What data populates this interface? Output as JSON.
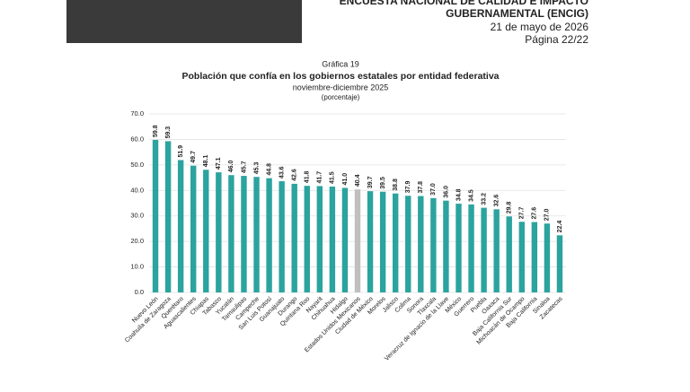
{
  "header": {
    "lines": [
      "ENCUESTA NACIONAL DE CALIDAD E IMPACTO",
      "GUBERNAMENTAL (ENCIG)",
      "21 de mayo de 2026",
      "Página 22/22"
    ]
  },
  "chart_data": {
    "type": "bar",
    "label": "Gráfica 19",
    "title": "Población que confía en los gobiernos estatales por entidad federativa",
    "subtitle": "noviembre-diciembre 2025",
    "unit_note": "(porcentaje)",
    "categories": [
      "Nuevo León",
      "Coahuila de Zaragoza",
      "Querétaro",
      "Aguascalientes",
      "Chiapas",
      "Tabasco",
      "Yucatán",
      "Tamaulipas",
      "Campeche",
      "San Luis Potosí",
      "Guanajuato",
      "Durango",
      "Quintana Roo",
      "Nayarit",
      "Chihuahua",
      "Hidalgo",
      "Estados Unidos Mexicanos",
      "Ciudad de México",
      "Morelos",
      "Jalisco",
      "Colima",
      "Sonora",
      "Tlaxcala",
      "Veracruz de Ignacio de la Llave",
      "México",
      "Guerrero",
      "Puebla",
      "Oaxaca",
      "Baja California Sur",
      "Michoacán de Ocampo",
      "Baja California",
      "Sinaloa",
      "Zacatecas"
    ],
    "values": [
      59.8,
      59.3,
      51.9,
      49.7,
      48.1,
      47.1,
      46.0,
      45.7,
      45.3,
      44.8,
      43.6,
      42.6,
      41.8,
      41.7,
      41.5,
      41.0,
      40.4,
      39.7,
      39.5,
      38.8,
      37.9,
      37.8,
      37.0,
      36.0,
      34.8,
      34.5,
      33.2,
      32.6,
      29.8,
      27.7,
      27.6,
      27.0,
      22.4
    ],
    "value_labels": [
      "59.8",
      "59.3",
      "51.9",
      "49.7",
      "48.1",
      "47.1",
      "46.0",
      "45.7",
      "45.3",
      "44.8",
      "43.6",
      "42.6",
      "41.8",
      "41.7",
      "41.5",
      "41.0",
      "40.4",
      "39.7",
      "39.5",
      "38.8",
      "37.9",
      "37.8",
      "37.0",
      "36.0",
      "34.8",
      "34.5",
      "33.2",
      "32.6",
      "29.8",
      "27.7",
      "27.6",
      "27.0",
      "22.4"
    ],
    "color": "#2ba39e",
    "highlight_color": "#bfbfbf",
    "highlight": "Estados Unidos Mexicanos",
    "ylim": [
      0,
      70
    ],
    "yticks": [
      {
        "value": 0,
        "label": "0.0"
      },
      {
        "value": 10,
        "label": "10.0"
      },
      {
        "value": 20,
        "label": "20.0"
      },
      {
        "value": 30,
        "label": "30.0"
      },
      {
        "value": 40,
        "label": "40.0"
      },
      {
        "value": 50,
        "label": "50.0"
      },
      {
        "value": 60,
        "label": "60.0"
      },
      {
        "value": 70,
        "label": "70.0"
      }
    ],
    "grid": true
  }
}
